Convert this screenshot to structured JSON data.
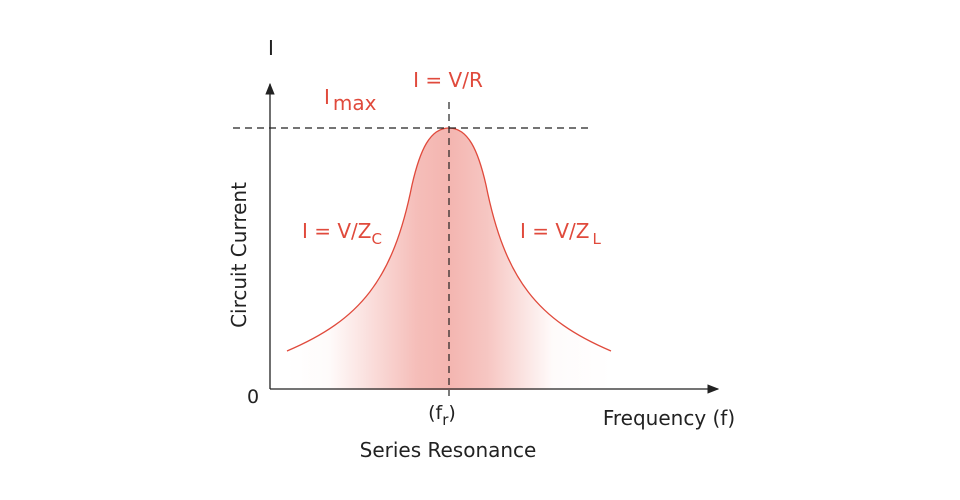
{
  "diagram": {
    "y_axis_symbol": "I",
    "y_axis_label": "Circuit Current",
    "origin_label": "0",
    "x_axis_label": "Frequency  (f)",
    "resonance_label": {
      "main": "(f",
      "sub": "r",
      "close": ")"
    },
    "caption": "Series Resonance",
    "imax_label": {
      "main": "I",
      "sub": "max"
    },
    "peak_label": "I = V/R",
    "left_label": {
      "main": "I = V/Z",
      "sub": "C"
    },
    "right_label": {
      "main": "I = V/Z",
      "sub": "L"
    }
  },
  "colors": {
    "curve": "#e04a3c",
    "fill": "#f2a8a2",
    "axis": "#222222",
    "text": "#222222",
    "label": "#e04a3c"
  }
}
